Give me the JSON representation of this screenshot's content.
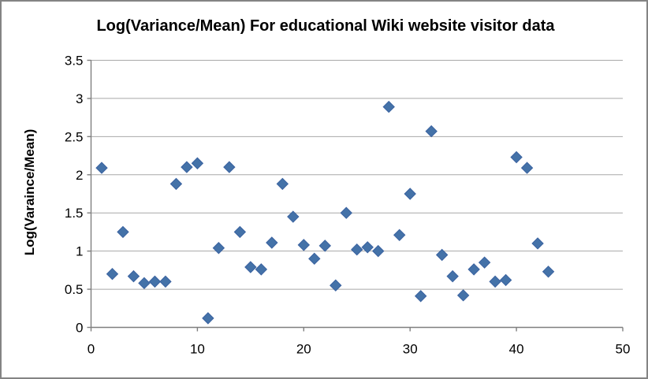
{
  "chart": {
    "title": "Log(Variance/Mean) For educational Wiki website visitor data",
    "ylabel": "Log(Varaince/Mean)"
  },
  "chart_data": {
    "type": "scatter",
    "title": "Log(Variance/Mean) For educational Wiki website visitor data",
    "xlabel": "",
    "ylabel": "Log(Varaince/Mean)",
    "xlim": [
      0,
      50
    ],
    "ylim": [
      0,
      3.5
    ],
    "xticks": [
      0,
      10,
      20,
      30,
      40,
      50
    ],
    "yticks": [
      0,
      0.5,
      1,
      1.5,
      2,
      2.5,
      3,
      3.5
    ],
    "grid": "horizontal-only",
    "legend": "none",
    "marker": "diamond",
    "colors": {
      "marker_fill": "#4472a8",
      "marker_stroke": "#3a62a0",
      "gridline": "#a8a8a8",
      "axis": "#7f7f7f",
      "frame_border": "#848484",
      "text": "#000000"
    },
    "series": [
      {
        "name": "Log(Variance/Mean)",
        "points": [
          [
            1,
            2.09
          ],
          [
            2,
            0.7
          ],
          [
            3,
            1.25
          ],
          [
            4,
            0.67
          ],
          [
            5,
            0.58
          ],
          [
            6,
            0.6
          ],
          [
            7,
            0.6
          ],
          [
            8,
            1.88
          ],
          [
            9,
            2.1
          ],
          [
            10,
            2.15
          ],
          [
            11,
            0.12
          ],
          [
            12,
            1.04
          ],
          [
            13,
            2.1
          ],
          [
            14,
            1.25
          ],
          [
            15,
            0.79
          ],
          [
            16,
            0.76
          ],
          [
            17,
            1.11
          ],
          [
            18,
            1.88
          ],
          [
            19,
            1.45
          ],
          [
            20,
            1.08
          ],
          [
            21,
            0.9
          ],
          [
            22,
            1.07
          ],
          [
            23,
            0.55
          ],
          [
            24,
            1.5
          ],
          [
            25,
            1.02
          ],
          [
            26,
            1.05
          ],
          [
            27,
            1.0
          ],
          [
            28,
            2.89
          ],
          [
            29,
            1.21
          ],
          [
            30,
            1.75
          ],
          [
            31,
            0.41
          ],
          [
            32,
            2.57
          ],
          [
            33,
            0.95
          ],
          [
            34,
            0.67
          ],
          [
            35,
            0.42
          ],
          [
            36,
            0.76
          ],
          [
            37,
            0.85
          ],
          [
            38,
            0.6
          ],
          [
            39,
            0.62
          ],
          [
            40,
            2.23
          ],
          [
            41,
            2.09
          ],
          [
            42,
            1.1
          ],
          [
            43,
            0.73
          ]
        ]
      }
    ]
  }
}
